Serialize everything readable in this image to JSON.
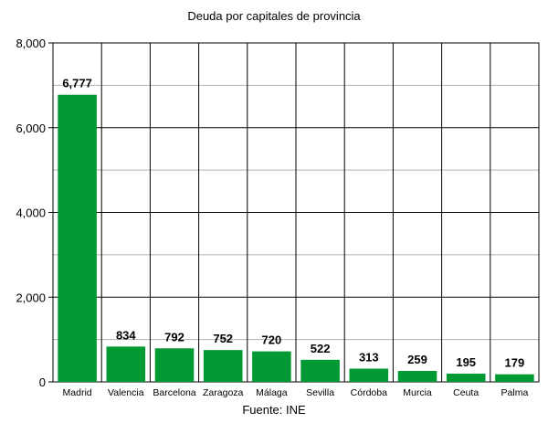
{
  "chart_data": {
    "type": "bar",
    "title": "Deuda por capitales de provincia",
    "source": "Fuente: INE",
    "categories": [
      "Madrid",
      "Valencia",
      "Barcelona",
      "Zaragoza",
      "Málaga",
      "Sevilla",
      "Córdoba",
      "Murcia",
      "Ceuta",
      "Palma"
    ],
    "values": [
      6777,
      834,
      792,
      752,
      720,
      522,
      313,
      259,
      195,
      179
    ],
    "value_labels": [
      "6,777",
      "834",
      "792",
      "752",
      "720",
      "522",
      "313",
      "259",
      "195",
      "179"
    ],
    "ylim": [
      0,
      8000
    ],
    "y_ticks": [
      0,
      2000,
      4000,
      6000,
      8000
    ],
    "y_tick_labels": [
      "0",
      "2,000",
      "4,000",
      "6,000",
      "8,000"
    ],
    "xlabel": "",
    "ylabel": "",
    "grid": true,
    "colors": {
      "bar": "#009933",
      "grid_major": "#000000",
      "grid_minor": "#b0b0b0"
    }
  }
}
